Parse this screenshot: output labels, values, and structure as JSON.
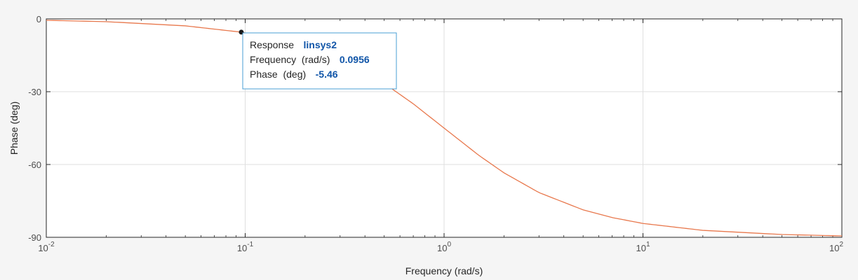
{
  "chart_data": {
    "type": "line",
    "xscale": "log",
    "xlim": [
      0.01,
      100
    ],
    "ylim": [
      -90,
      0
    ],
    "xlabel": "Frequency (rad/s)",
    "ylabel": "Phase (deg)",
    "grid": true,
    "x_ticks": [
      {
        "value": 0.01,
        "base": "10",
        "exp": "-2"
      },
      {
        "value": 0.1,
        "base": "10",
        "exp": "-1"
      },
      {
        "value": 1,
        "base": "10",
        "exp": "0"
      },
      {
        "value": 10,
        "base": "10",
        "exp": "1"
      },
      {
        "value": 100,
        "base": "10",
        "exp": "2"
      }
    ],
    "y_ticks": [
      {
        "value": 0,
        "label": "0"
      },
      {
        "value": -30,
        "label": "-30"
      },
      {
        "value": -60,
        "label": "-60"
      },
      {
        "value": -90,
        "label": "-90"
      }
    ],
    "series": [
      {
        "color": "#e8784d",
        "x": [
          0.01,
          0.02,
          0.05,
          0.0956,
          0.2,
          0.3,
          0.5,
          0.7,
          1,
          1.5,
          2,
          3,
          5,
          7,
          10,
          20,
          50,
          100
        ],
        "y": [
          -0.57,
          -1.15,
          -2.86,
          -5.46,
          -11.31,
          -16.7,
          -26.57,
          -34.99,
          -45,
          -56.31,
          -63.43,
          -71.57,
          -78.69,
          -81.87,
          -84.29,
          -87.14,
          -88.85,
          -89.43
        ]
      }
    ],
    "datatip": {
      "x": 0.0956,
      "y": -5.46,
      "response_label": "Response",
      "response_value": "linsys2",
      "frequency_label": "Frequency  (rad/s)",
      "frequency_value": "0.0956",
      "phase_label": "Phase  (deg)",
      "phase_value": "-5.46",
      "border_color": "#4a9fd4"
    }
  }
}
